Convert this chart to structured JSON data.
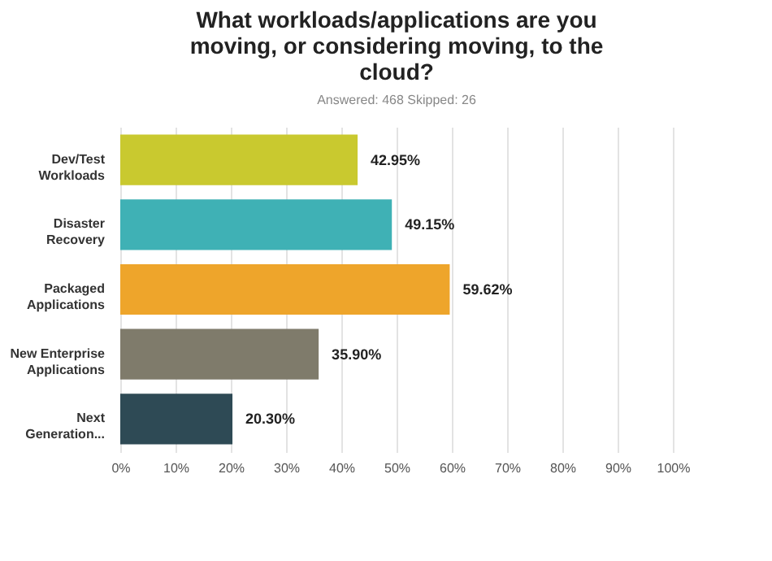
{
  "chart_data": {
    "type": "bar",
    "orientation": "horizontal",
    "title": "What workloads/applications are you moving, or considering moving, to the cloud?",
    "subtitle": "Answered: 468    Skipped: 26",
    "categories": [
      "Dev/Test Workloads",
      "Disaster Recovery",
      "Packaged Applications",
      "New Enterprise Applications",
      "Next Generation..."
    ],
    "values": [
      42.95,
      49.15,
      59.62,
      35.9,
      20.3
    ],
    "colors": [
      "#c9c92f",
      "#3fb1b5",
      "#eea52b",
      "#7f7b6b",
      "#2e4a55"
    ],
    "value_labels": [
      "42.95%",
      "49.15%",
      "59.62%",
      "35.90%",
      "20.30%"
    ],
    "xlim": [
      0,
      100
    ],
    "xticks": [
      {
        "value": 0,
        "label": "0%"
      },
      {
        "value": 10,
        "label": "10%"
      },
      {
        "value": 20,
        "label": "20%"
      },
      {
        "value": 30,
        "label": "30%"
      },
      {
        "value": 40,
        "label": "40%"
      },
      {
        "value": 50,
        "label": "50%"
      },
      {
        "value": 60,
        "label": "60%"
      },
      {
        "value": 70,
        "label": "70%"
      },
      {
        "value": 80,
        "label": "80%"
      },
      {
        "value": 90,
        "label": "90%"
      },
      {
        "value": 100,
        "label": "100%"
      }
    ],
    "grid": "x"
  }
}
